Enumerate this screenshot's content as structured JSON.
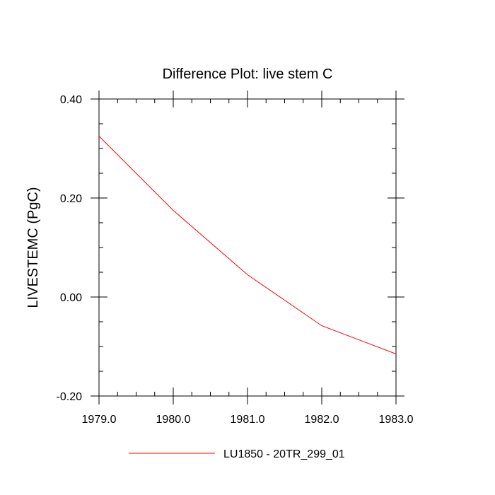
{
  "chart_data": {
    "type": "line",
    "title": "Difference Plot: live stem C",
    "xlabel": "",
    "ylabel": "LIVESTEMC  (PgC)",
    "xlim": [
      1979.0,
      1983.0
    ],
    "ylim": [
      -0.2,
      0.4
    ],
    "x_ticks": [
      1979.0,
      1980.0,
      1981.0,
      1982.0,
      1983.0
    ],
    "x_tick_labels": [
      "1979.0",
      "1980.0",
      "1981.0",
      "1982.0",
      "1983.0"
    ],
    "y_ticks": [
      -0.2,
      0.0,
      0.2,
      0.4
    ],
    "y_tick_labels": [
      "-0.20",
      "0.00",
      "0.20",
      "0.40"
    ],
    "grid": false,
    "legend_position": "bottom",
    "series": [
      {
        "name": "LU1850 - 20TR_299_01",
        "color": "#ff0000",
        "x": [
          1979.0,
          1980.0,
          1981.0,
          1982.0,
          1983.0
        ],
        "y": [
          0.325,
          0.175,
          0.045,
          -0.058,
          -0.115
        ]
      }
    ]
  }
}
